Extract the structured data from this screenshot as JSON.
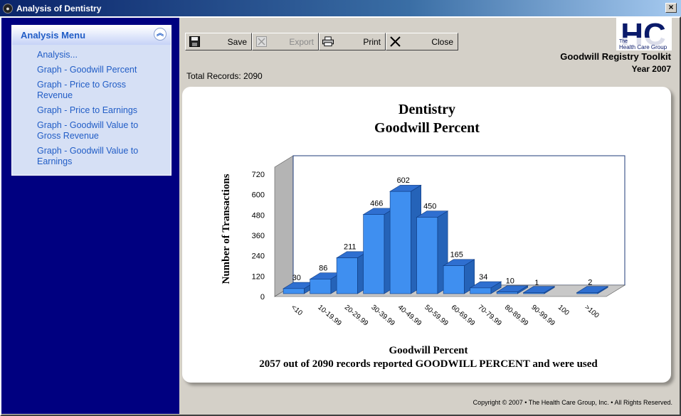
{
  "window": {
    "title": "Analysis of Dentistry"
  },
  "sidebar": {
    "menu_title": "Analysis Menu",
    "items": [
      {
        "label": "Analysis..."
      },
      {
        "label": "Graph - Goodwill Percent"
      },
      {
        "label": "Graph - Price to Gross Revenue"
      },
      {
        "label": "Graph - Price to Earnings"
      },
      {
        "label": "Graph - Goodwill Value to Gross Revenue"
      },
      {
        "label": "Graph - Goodwill Value to Earnings"
      }
    ]
  },
  "toolbar": {
    "save_label": "Save",
    "export_label": "Export",
    "print_label": "Print",
    "close_label": "Close"
  },
  "total_records": "Total Records: 2090",
  "branding": {
    "logo_text": "HC",
    "logo_sub1": "The",
    "logo_sub2": "Health Care Group",
    "toolkit": "Goodwill Registry Toolkit",
    "year": "Year 2007"
  },
  "copyright": "Copyright © 2007 • The Health Care Group, Inc. • All Rights Reserved.",
  "chart_data": {
    "type": "bar",
    "title": "Dentistry",
    "subtitle": "Goodwill Percent",
    "xlabel": "Goodwill Percent",
    "ylabel": "Number of Transactions",
    "footnote": "2057 out of 2090 records reported GOODWILL PERCENT and were used",
    "categories": [
      "<10",
      "10-19.99",
      "20-29.99",
      "30-39.99",
      "40-49.99",
      "50-59.99",
      "60-69.99",
      "70-79.99",
      "80-89.99",
      "90-99.99",
      "100",
      ">100"
    ],
    "values": [
      30,
      86,
      211,
      466,
      602,
      450,
      165,
      34,
      10,
      1,
      0,
      2
    ],
    "data_labels": [
      "30",
      "86",
      "211",
      "466",
      "602",
      "450",
      "165",
      "34",
      "10",
      "1",
      "",
      "2"
    ],
    "yticks": [
      0,
      120,
      240,
      360,
      480,
      600,
      720
    ],
    "ylim": [
      0,
      720
    ],
    "bar_color": "#3f8ff0",
    "grid": false
  }
}
